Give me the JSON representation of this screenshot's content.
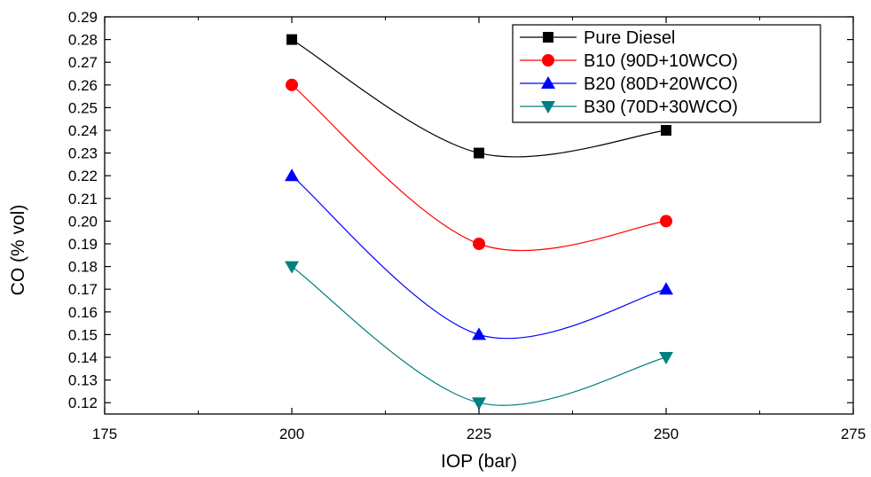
{
  "chart_data": {
    "type": "line",
    "title": "",
    "xlabel": "IOP (bar)",
    "ylabel": "CO (% vol)",
    "xlim": [
      175,
      275
    ],
    "ylim": [
      0.115,
      0.29
    ],
    "xticks": [
      175,
      200,
      225,
      250,
      275
    ],
    "yticks": [
      0.12,
      0.13,
      0.14,
      0.15,
      0.16,
      0.17,
      0.18,
      0.19,
      0.2,
      0.21,
      0.22,
      0.23,
      0.24,
      0.25,
      0.26,
      0.27,
      0.28,
      0.29
    ],
    "x": [
      200,
      225,
      250
    ],
    "legend_position": "top-right",
    "grid": false,
    "series": [
      {
        "name": "Pure Diesel",
        "values": [
          0.28,
          0.23,
          0.24
        ],
        "color": "#000000",
        "marker": "square"
      },
      {
        "name": "B10 (90D+10WCO)",
        "values": [
          0.26,
          0.19,
          0.2
        ],
        "color": "#ff0000",
        "marker": "circle"
      },
      {
        "name": "B20 (80D+20WCO)",
        "values": [
          0.22,
          0.15,
          0.17
        ],
        "color": "#0000ff",
        "marker": "triangle-up"
      },
      {
        "name": "B30 (70D+30WCO)",
        "values": [
          0.18,
          0.12,
          0.14
        ],
        "color": "#008080",
        "marker": "triangle-down"
      }
    ]
  }
}
